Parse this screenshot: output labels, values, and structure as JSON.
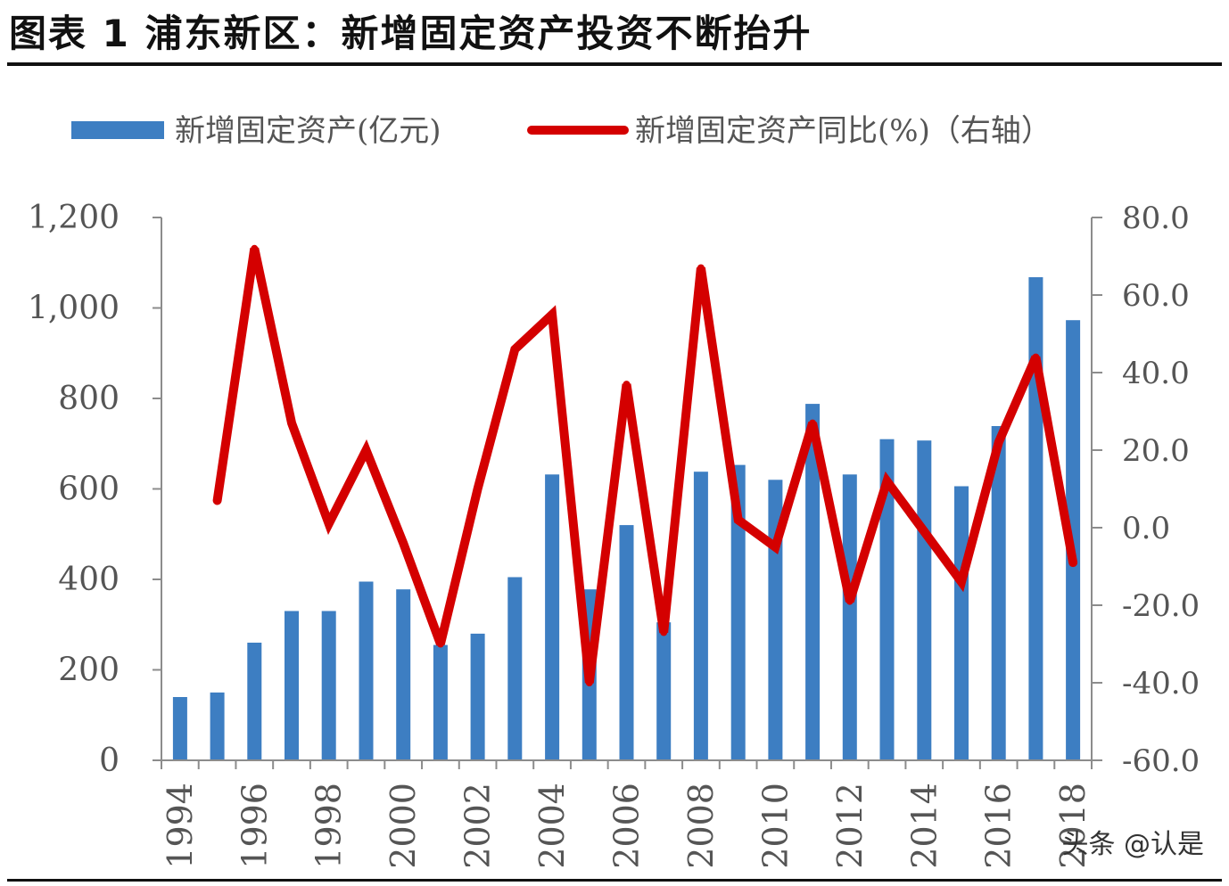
{
  "title": "图表 1 浦东新区：新增固定资产投资不断抬升",
  "watermark": "头条 @认是",
  "colors": {
    "bar": "#3d7ec2",
    "line": "#d40000",
    "axis": "#8c8c8c",
    "text": "#555555"
  },
  "chart_data": {
    "type": "bar+line",
    "categories": [
      "1994",
      "1995",
      "1996",
      "1997",
      "1998",
      "1999",
      "2000",
      "2001",
      "2002",
      "2003",
      "2004",
      "2005",
      "2006",
      "2007",
      "2008",
      "2009",
      "2010",
      "2011",
      "2012",
      "2013",
      "2014",
      "2015",
      "2016",
      "2017",
      "2018"
    ],
    "x_tick_labels": [
      "1994",
      "1996",
      "1998",
      "2000",
      "2002",
      "2004",
      "2006",
      "2008",
      "2010",
      "2012",
      "2014",
      "2016",
      "2018"
    ],
    "series": [
      {
        "name": "新增固定资产(亿元)",
        "type": "bar",
        "axis": "left",
        "values": [
          140,
          150,
          260,
          330,
          330,
          395,
          378,
          255,
          280,
          405,
          632,
          378,
          520,
          305,
          638,
          653,
          620,
          788,
          632,
          710,
          707,
          606,
          739,
          1068,
          973
        ]
      },
      {
        "name": "新增固定资产同比(%)（右轴）",
        "type": "line",
        "axis": "right",
        "values": [
          null,
          7.0,
          72.0,
          27.0,
          1.0,
          20.0,
          -4.0,
          -30.0,
          10.0,
          46.0,
          55.0,
          -40.0,
          37.0,
          -27.0,
          67.0,
          2.0,
          -5.0,
          27.0,
          -19.0,
          12.0,
          -1.0,
          -14.0,
          22.0,
          44.0,
          -9.0
        ]
      }
    ],
    "y_left": {
      "ylim": [
        0,
        1200
      ],
      "ticks": [
        "0",
        "200",
        "400",
        "600",
        "800",
        "1,000",
        "1,200"
      ],
      "values": [
        0,
        200,
        400,
        600,
        800,
        1000,
        1200
      ]
    },
    "y_right": {
      "ylim": [
        -60,
        80
      ],
      "ticks": [
        "-60.0",
        "-40.0",
        "-20.0",
        "0.0",
        "20.0",
        "40.0",
        "60.0",
        "80.0"
      ],
      "values": [
        -60,
        -40,
        -20,
        0,
        20,
        40,
        60,
        80
      ]
    },
    "legend_position": "top",
    "grid": false
  }
}
